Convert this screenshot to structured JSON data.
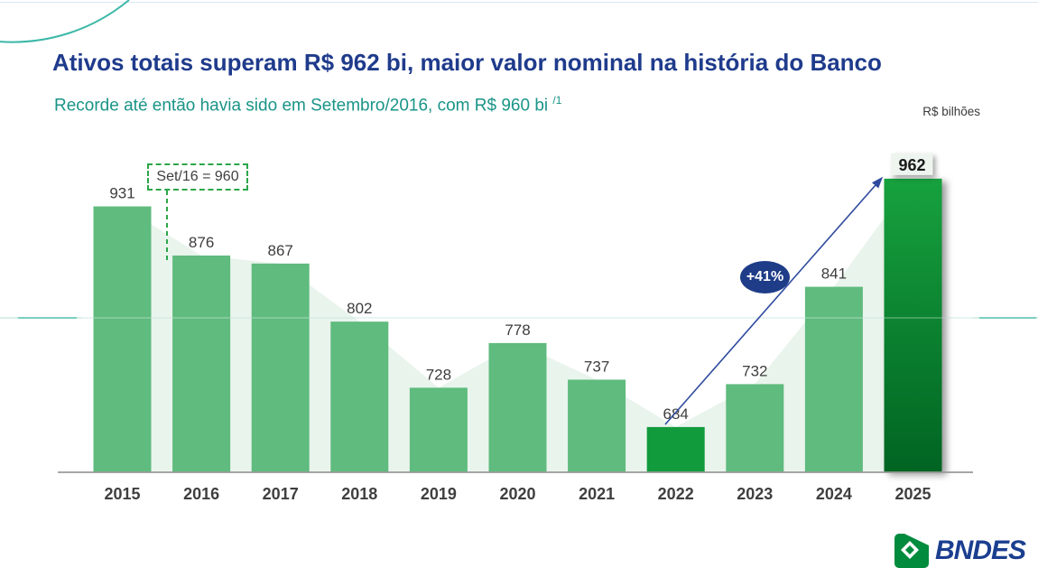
{
  "slide": {
    "title": "Ativos totais superam R$ 962 bi, maior valor nominal na história do Banco",
    "subtitle": "Recorde até então havia sido em Setembro/2016, com R$ 960 bi ",
    "subtitle_superscript": "/1",
    "units_label": "R$ bilhões",
    "logo_text": "BNDES"
  },
  "annotations": {
    "callout": "Set/16 = 960",
    "growth_badge": "+41%"
  },
  "colors": {
    "title": "#1F3B8C",
    "subtitle": "#1A9488",
    "bar_default": "#5FBB7E",
    "bar_2022": "#129B3C",
    "bar_2025_top": "#17A13E",
    "bar_2025_bottom": "#006422",
    "area_fill": "#E9F4EC",
    "arrow": "#2E4A9E",
    "badge_bg": "#1E3C87",
    "callout_green": "#2AA64A",
    "axis_gray": "#9A9A9A",
    "accent_teal": "#3CB8A8",
    "logo_green": "#008B3D",
    "logo_blue": "#1B3E8F",
    "value_label": "#3D3D3D"
  },
  "chart_data": {
    "type": "bar",
    "title": "Ativos totais do BNDES",
    "ylabel": "R$ bilhões",
    "categories": [
      "2015",
      "2016",
      "2017",
      "2018",
      "2019",
      "2020",
      "2021",
      "2022",
      "2023",
      "2024",
      "2025"
    ],
    "values": [
      931,
      876,
      867,
      802,
      728,
      778,
      737,
      684,
      732,
      841,
      962
    ],
    "value_labels_shown": true,
    "grid": "off",
    "legend": "none",
    "axis_starts_at_zero": false,
    "implied_axis_min": 633,
    "highlighted_categories": [
      {
        "category": "2022",
        "style": "bright solid green"
      },
      {
        "category": "2025",
        "style": "dark green gradient with drop shadow and boxed value label"
      }
    ],
    "background_area_series": {
      "note": "same values drawn as light green area behind bars",
      "values": [
        931,
        876,
        867,
        802,
        728,
        778,
        737,
        684,
        732,
        841,
        962
      ]
    },
    "annotations": [
      {
        "text": "Set/16 = 960",
        "type": "dashed callout box with dashed drop line between 2015 and 2016"
      },
      {
        "text": "+41%",
        "type": "ellipse badge on arrow from 2022 (684) up to 2025 (962)"
      }
    ]
  }
}
